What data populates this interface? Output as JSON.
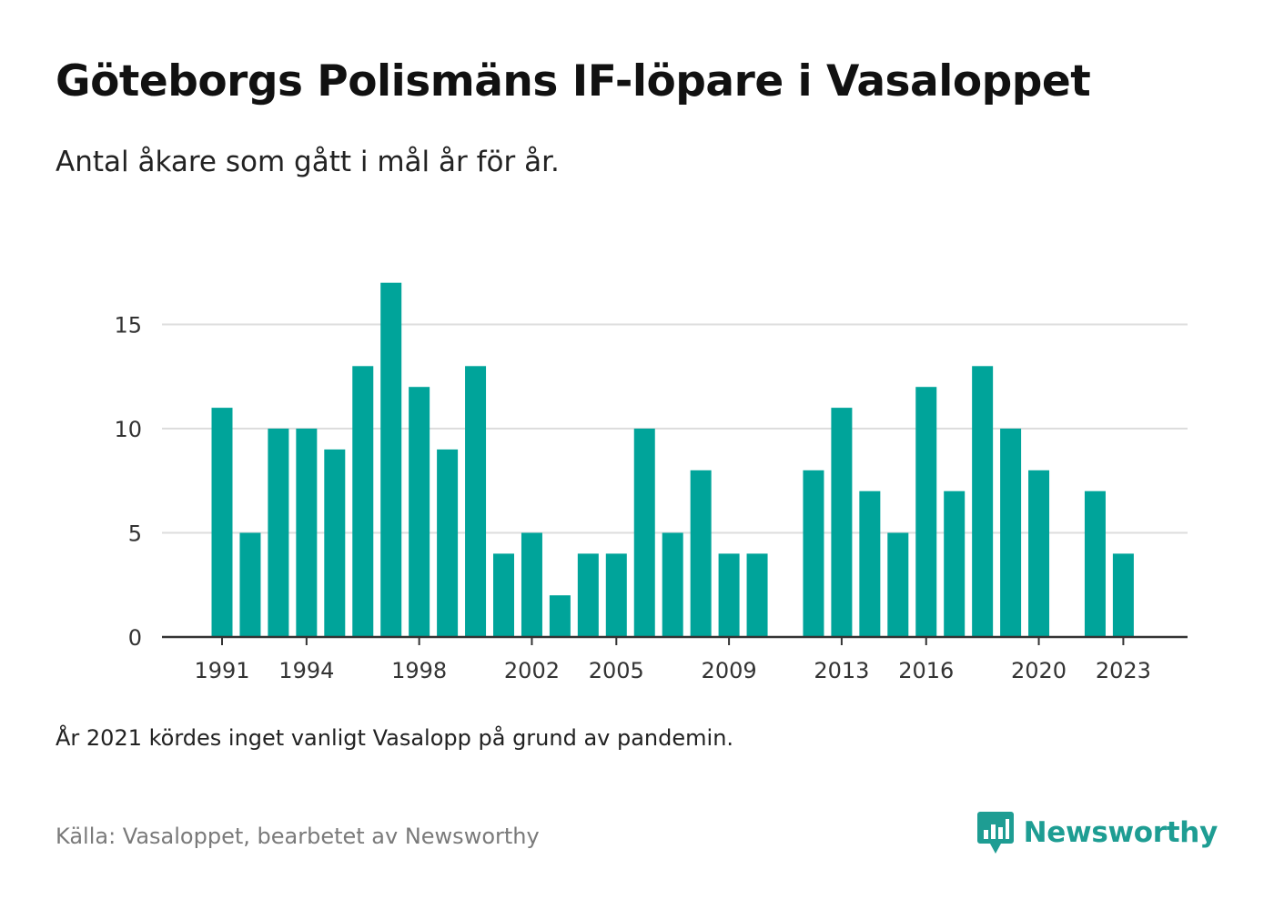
{
  "header": {
    "title": "Göteborgs Polismäns IF-löpare i Vasaloppet",
    "subtitle": "Antal åkare som gått i mål år för år."
  },
  "footer": {
    "note": "År 2021 kördes inget vanligt Vasalopp på grund av pandemin.",
    "source": "Källa: Vasaloppet, bearbetet av Newsworthy",
    "brand": "Newsworthy"
  },
  "colors": {
    "bar": "#00a49a",
    "brand": "#1e9d93",
    "grid": "#dddddd",
    "axis": "#333333"
  },
  "icons": {
    "brand_logo": "newsworthy-logo-icon"
  },
  "chart_data": {
    "type": "bar",
    "categories": [
      "1991",
      "1992",
      "1993",
      "1994",
      "1995",
      "1996",
      "1997",
      "1998",
      "1999",
      "2000",
      "2001",
      "2002",
      "2003",
      "2004",
      "2005",
      "2006",
      "2007",
      "2008",
      "2009",
      "2010",
      "2011",
      "2012",
      "2013",
      "2014",
      "2015",
      "2016",
      "2017",
      "2018",
      "2019",
      "2020",
      "2021",
      "2022",
      "2023"
    ],
    "values": [
      11,
      5,
      10,
      10,
      9,
      13,
      17,
      12,
      9,
      13,
      4,
      5,
      2,
      4,
      4,
      10,
      5,
      8,
      4,
      4,
      null,
      8,
      11,
      7,
      5,
      12,
      7,
      13,
      10,
      8,
      null,
      7,
      4
    ],
    "x_tick_labels": [
      "1991",
      "1994",
      "1998",
      "2002",
      "2005",
      "2009",
      "2013",
      "2016",
      "2020",
      "2023"
    ],
    "y_ticks": [
      0,
      5,
      10,
      15
    ],
    "ylim": [
      0,
      18.5
    ],
    "grid": true,
    "legend": "none"
  }
}
